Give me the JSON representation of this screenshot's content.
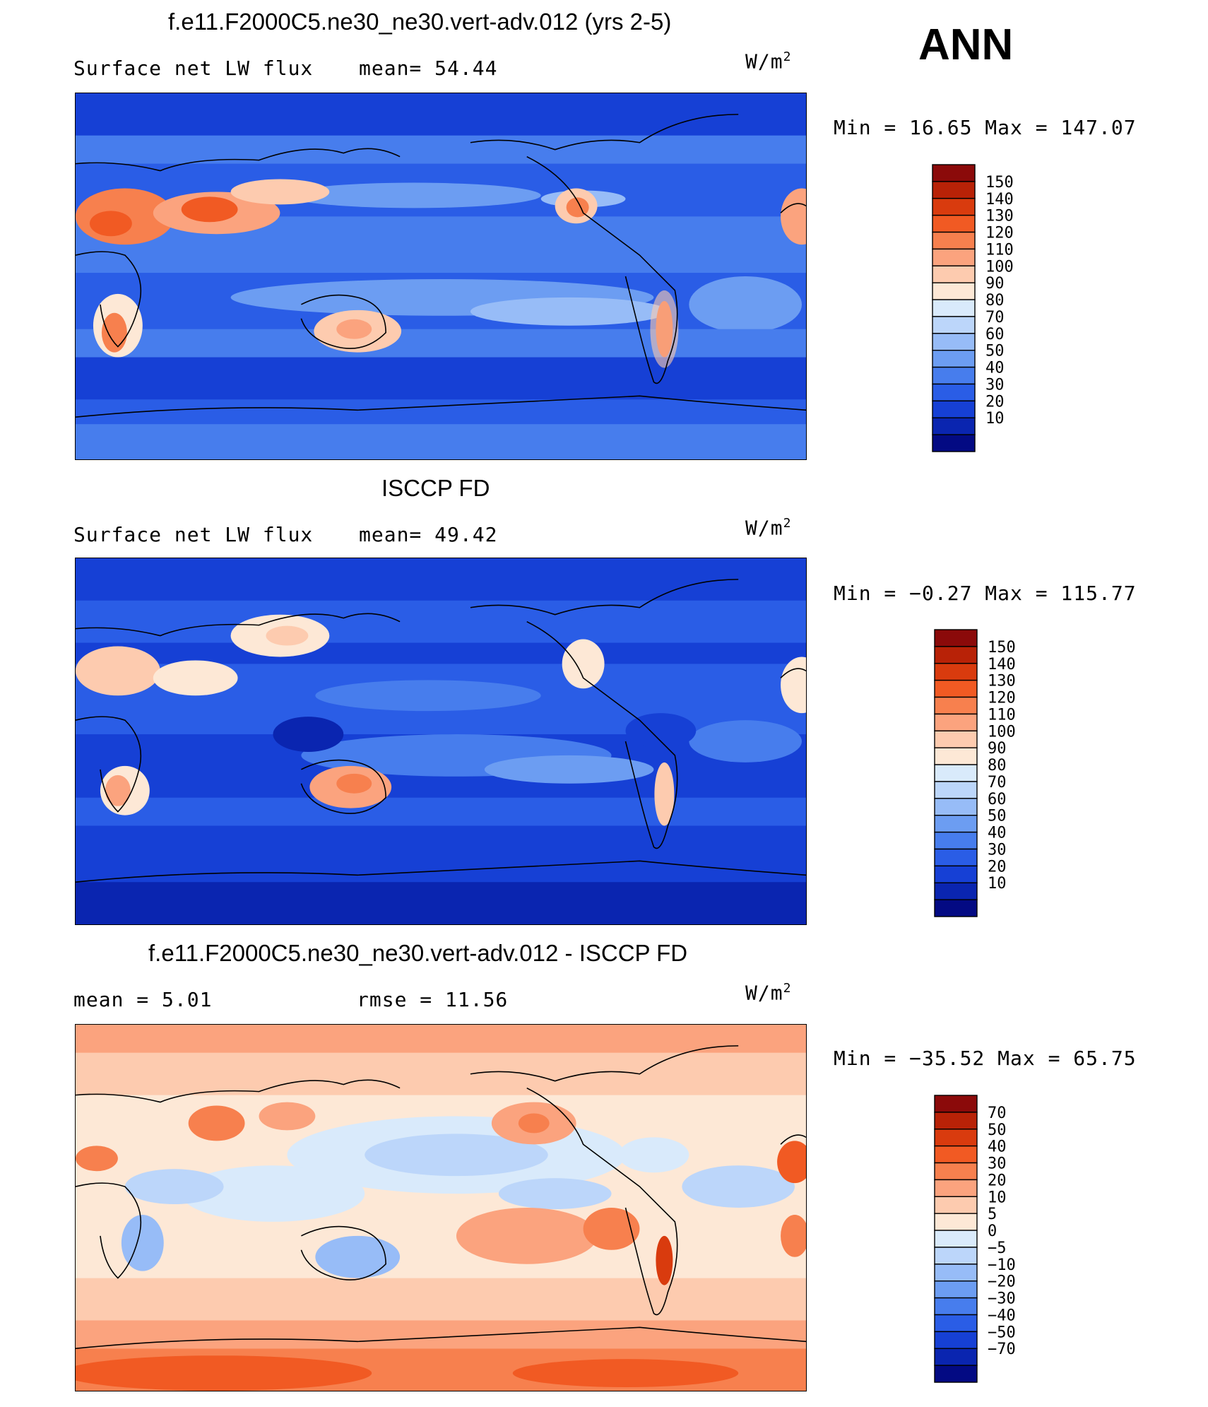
{
  "panel_label": "ANN",
  "panels": [
    {
      "title": "f.e11.F2000C5.ne30_ne30.vert-adv.012 (yrs 2-5)",
      "left_text": "Surface net LW flux",
      "mid_text": "mean=  54.44",
      "units": "W/m",
      "units_sup": "2",
      "minmax": "Min =   16.65 Max =  147.07",
      "colorbar": {
        "labels": [
          "150",
          "140",
          "130",
          "120",
          "110",
          "100",
          "90",
          "80",
          "70",
          "60",
          "50",
          "40",
          "30",
          "20",
          "10"
        ],
        "colors": [
          "#8b0a0a",
          "#b82207",
          "#d93b0e",
          "#f15a23",
          "#f7804e",
          "#fba37e",
          "#fdcbaf",
          "#fde8d6",
          "#d9eafb",
          "#bcd6fa",
          "#97bcf7",
          "#6c9df2",
          "#477ded",
          "#2a5de6",
          "#1640d5",
          "#0a25b0",
          "#030a83"
        ]
      },
      "palette": [
        "#030a83",
        "#0a25b0",
        "#1640d5",
        "#2a5de6",
        "#477ded",
        "#6c9df2",
        "#97bcf7",
        "#bcd6fa",
        "#d9eafb",
        "#fde8d6",
        "#fdcbaf",
        "#fba37e",
        "#f7804e",
        "#f15a23",
        "#d93b0e",
        "#b82207",
        "#8b0a0a"
      ]
    },
    {
      "title": "ISCCP FD",
      "left_text": "Surface net LW flux",
      "mid_text": "mean=  49.42",
      "units": "W/m",
      "units_sup": "2",
      "minmax": "Min =  −0.27 Max =  115.77",
      "colorbar": {
        "labels": [
          "150",
          "140",
          "130",
          "120",
          "110",
          "100",
          "90",
          "80",
          "70",
          "60",
          "50",
          "40",
          "30",
          "20",
          "10"
        ],
        "colors": [
          "#8b0a0a",
          "#b82207",
          "#d93b0e",
          "#f15a23",
          "#f7804e",
          "#fba37e",
          "#fdcbaf",
          "#fde8d6",
          "#d9eafb",
          "#bcd6fa",
          "#97bcf7",
          "#6c9df2",
          "#477ded",
          "#2a5de6",
          "#1640d5",
          "#0a25b0",
          "#030a83"
        ]
      }
    },
    {
      "title": "f.e11.F2000C5.ne30_ne30.vert-adv.012 - ISCCP FD",
      "left_text": "mean =     5.01",
      "mid_text": "rmse =   11.56",
      "units": "W/m",
      "units_sup": "2",
      "minmax": "Min = −35.52 Max =   65.75",
      "colorbar": {
        "labels": [
          "70",
          "50",
          "40",
          "30",
          "20",
          "10",
          "5",
          "0",
          "−5",
          "−10",
          "−20",
          "−30",
          "−40",
          "−50",
          "−70"
        ],
        "colors": [
          "#8b0a0a",
          "#b82207",
          "#d93b0e",
          "#f15a23",
          "#f7804e",
          "#fba37e",
          "#fdcbaf",
          "#fde8d6",
          "#d9eafb",
          "#bcd6fa",
          "#97bcf7",
          "#6c9df2",
          "#477ded",
          "#2a5de6",
          "#1640d5",
          "#0a25b0",
          "#030a83"
        ]
      }
    }
  ]
}
